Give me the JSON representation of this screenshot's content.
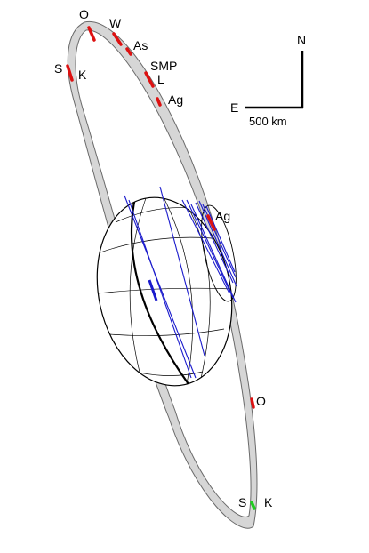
{
  "compass": {
    "north_label": "N",
    "east_label": "E",
    "scale_label": "500 km"
  },
  "ring_labels": {
    "o_top": "O",
    "w": "W",
    "as": "As",
    "s_left": "S",
    "k_left": "K",
    "smp": "SMP",
    "l": "L",
    "ag_upper": "Ag",
    "ag_mid": "Ag",
    "o_lower": "O",
    "s_bottom": "S",
    "k_bottom": "K"
  },
  "colors": {
    "ring_fill": "#d6d6d6",
    "ring_stroke": "#6a6a6a",
    "chord": "#1a1acc",
    "occultation_segment": "#dd1111",
    "green_segment": "#22cc22",
    "body_outline": "#000000"
  }
}
